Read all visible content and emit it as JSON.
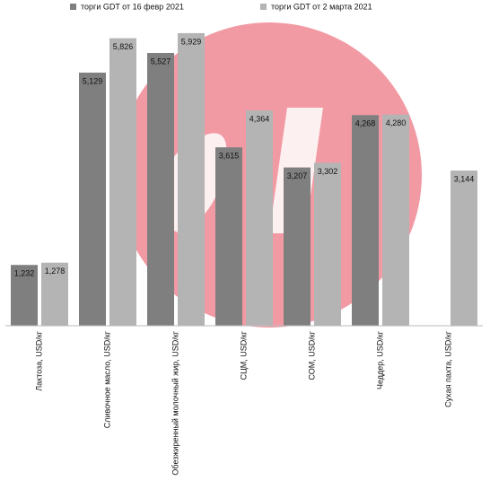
{
  "chart_data": {
    "type": "bar",
    "categories": [
      "Лактоза,  USD/кг",
      "Сливочное масло, USD/кг",
      "Обезжиренный молочный жир, USD/кг",
      "СЦМ, USD/кг",
      "СОМ, USD/кг",
      "Чеддер, USD/кг",
      "Сухая пахта, USD/кг"
    ],
    "series": [
      {
        "name": "торги GDT от 16 февр 2021",
        "color": "#7f7f7f",
        "values": [
          1232,
          5129,
          5527,
          3615,
          3207,
          4268,
          null
        ],
        "value_labels": [
          "1,232",
          "5,129",
          "5,527",
          "3,615",
          "3,207",
          "4,268",
          null
        ]
      },
      {
        "name": "торги GDT от 2 марта 2021",
        "color": "#b4b4b4",
        "values": [
          1278,
          5826,
          5929,
          4364,
          3302,
          4280,
          3144
        ],
        "value_labels": [
          "1,278",
          "5,826",
          "5,929",
          "4,364",
          "3,302",
          "4,280",
          "3,144"
        ]
      }
    ],
    "ylim": [
      0,
      6000
    ],
    "legend": "top"
  }
}
